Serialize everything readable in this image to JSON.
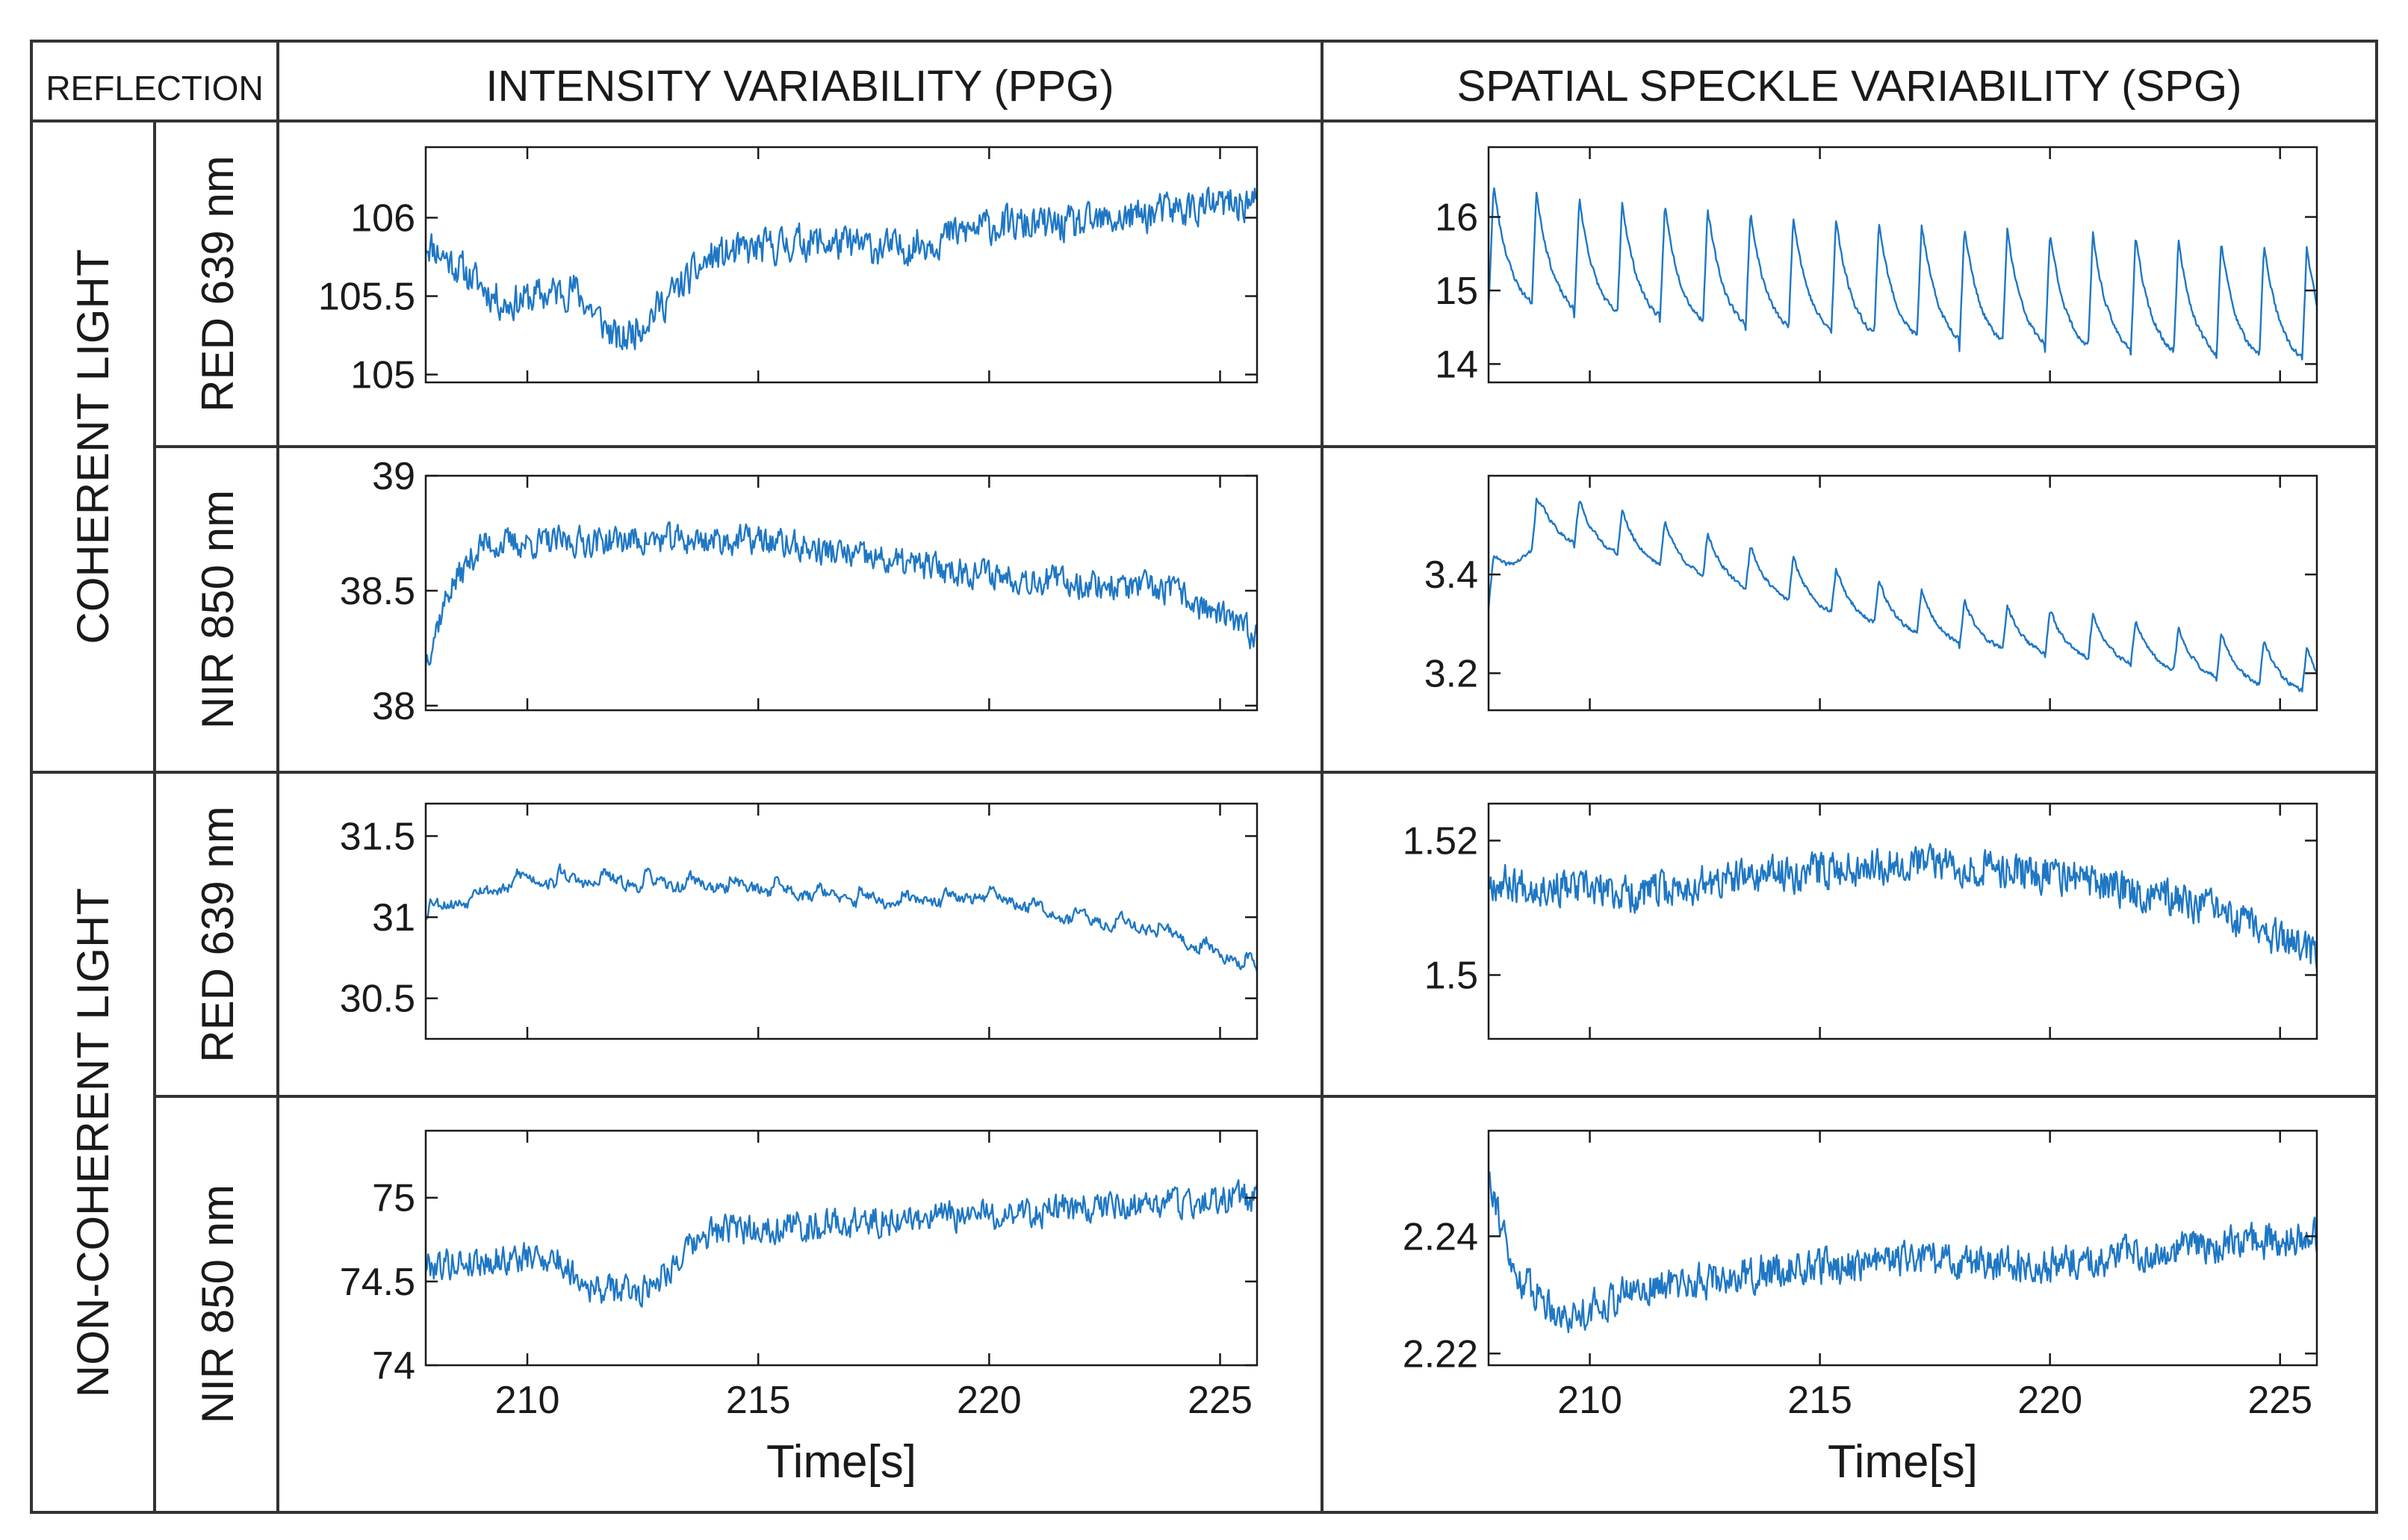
{
  "header": {
    "corner": "REFLECTION",
    "col_ppg": "INTENSITY VARIABILITY (PPG)",
    "col_spg": "SPATIAL SPECKLE VARIABILITY (SPG)"
  },
  "groups": {
    "coherent": "COHERENT LIGHT",
    "noncoherent": "NON-COHERENT LIGHT"
  },
  "rows": [
    "RED 639 nm",
    "NIR 850 nm",
    "RED 639 nm",
    "NIR 850 nm"
  ],
  "colors": {
    "line": "#1f77c4",
    "frame": "#1a1a1a",
    "border": "#333333"
  },
  "xlabel": "Time[s]",
  "chart_data": [
    {
      "id": "coh-red-ppg",
      "type": "line",
      "light": "COHERENT LIGHT",
      "source": "RED 639 nm",
      "signal": "INTENSITY VARIABILITY (PPG)",
      "xlim": [
        207.8,
        225.8
      ],
      "ylim": [
        104.95,
        106.45
      ],
      "yticks": [
        105,
        105.5,
        106
      ],
      "ytick_labels": [
        "105",
        "105.5",
        "106"
      ],
      "xticks": [
        210,
        215,
        220,
        225
      ],
      "xtick_labels": [
        "210",
        "215",
        "220",
        "225"
      ],
      "xlabel": "",
      "trend": [
        [
          207.8,
          105.85
        ],
        [
          209.5,
          105.45
        ],
        [
          211,
          105.55
        ],
        [
          212,
          105.2
        ],
        [
          214,
          105.75
        ],
        [
          216,
          105.85
        ],
        [
          218,
          105.8
        ],
        [
          220,
          105.95
        ],
        [
          222,
          105.95
        ],
        [
          224,
          106.05
        ],
        [
          225.8,
          106.1
        ]
      ],
      "noise": 0.16,
      "n": 720,
      "seed": 11
    },
    {
      "id": "coh-red-spg",
      "type": "line",
      "light": "COHERENT LIGHT",
      "source": "RED 639 nm",
      "signal": "SPATIAL SPECKLE VARIABILITY (SPG)",
      "xlim": [
        207.8,
        225.8
      ],
      "ylim": [
        13.75,
        16.95
      ],
      "yticks": [
        14,
        15,
        16
      ],
      "ytick_labels": [
        "14",
        "15",
        "16"
      ],
      "xticks": [
        210,
        215,
        220,
        225
      ],
      "xtick_labels": [
        "210",
        "215",
        "220",
        "225"
      ],
      "xlabel": "",
      "trend": [
        [
          207.8,
          15.6
        ],
        [
          210,
          15.4
        ],
        [
          215,
          15.15
        ],
        [
          220,
          14.95
        ],
        [
          225.8,
          14.75
        ]
      ],
      "pulse": {
        "period": 0.93,
        "amp": 1.7
      },
      "noise": 0.05,
      "n": 900,
      "seed": 23
    },
    {
      "id": "coh-nir-ppg",
      "type": "line",
      "light": "COHERENT LIGHT",
      "source": "NIR 850 nm",
      "signal": "INTENSITY VARIABILITY (PPG)",
      "xlim": [
        207.8,
        225.8
      ],
      "ylim": [
        37.98,
        39.0
      ],
      "yticks": [
        38,
        38.5,
        39
      ],
      "ytick_labels": [
        "38",
        "38.5",
        "39"
      ],
      "xticks": [
        210,
        215,
        220,
        225
      ],
      "xtick_labels": [
        "210",
        "215",
        "220",
        "225"
      ],
      "xlabel": "",
      "trend": [
        [
          207.8,
          38.2
        ],
        [
          208.3,
          38.5
        ],
        [
          209,
          38.7
        ],
        [
          212,
          38.72
        ],
        [
          215,
          38.72
        ],
        [
          218,
          38.62
        ],
        [
          221,
          38.55
        ],
        [
          224,
          38.5
        ],
        [
          225.8,
          38.3
        ]
      ],
      "noise": 0.09,
      "n": 720,
      "seed": 37
    },
    {
      "id": "coh-nir-spg",
      "type": "line",
      "light": "COHERENT LIGHT",
      "source": "NIR 850 nm",
      "signal": "SPATIAL SPECKLE VARIABILITY (SPG)",
      "xlim": [
        207.8,
        225.8
      ],
      "ylim": [
        3.125,
        3.6
      ],
      "yticks": [
        3.2,
        3.4
      ],
      "ytick_labels": [
        "3.2",
        "3.4"
      ],
      "xticks": [
        210,
        215,
        220,
        225
      ],
      "xtick_labels": [
        "210",
        "215",
        "220",
        "225"
      ],
      "xlabel": "",
      "trend": [
        [
          207.8,
          3.38
        ],
        [
          209,
          3.52
        ],
        [
          212,
          3.45
        ],
        [
          215,
          3.37
        ],
        [
          218,
          3.3
        ],
        [
          221,
          3.27
        ],
        [
          225.8,
          3.2
        ]
      ],
      "pulse": {
        "period": 0.93,
        "amp": 0.1
      },
      "noise": 0.006,
      "n": 900,
      "seed": 41
    },
    {
      "id": "noncoh-red-ppg",
      "type": "line",
      "light": "NON-COHERENT LIGHT",
      "source": "RED 639 nm",
      "signal": "INTENSITY VARIABILITY (PPG)",
      "xlim": [
        207.8,
        225.8
      ],
      "ylim": [
        30.25,
        31.7
      ],
      "yticks": [
        30.5,
        31,
        31.5
      ],
      "ytick_labels": [
        "30.5",
        "31",
        "31.5"
      ],
      "xticks": [
        210,
        215,
        220,
        225
      ],
      "xtick_labels": [
        "210",
        "215",
        "220",
        "225"
      ],
      "xlabel": "",
      "trend": [
        [
          207.8,
          31.05
        ],
        [
          210,
          31.25
        ],
        [
          213,
          31.22
        ],
        [
          215,
          31.2
        ],
        [
          218,
          31.1
        ],
        [
          220,
          31.15
        ],
        [
          222,
          31.0
        ],
        [
          223.5,
          30.95
        ],
        [
          225.8,
          30.7
        ]
      ],
      "pulse": {
        "period": 0.93,
        "amp": 0.1
      },
      "noise": 0.05,
      "n": 720,
      "seed": 53
    },
    {
      "id": "noncoh-red-spg",
      "type": "line",
      "light": "NON-COHERENT LIGHT",
      "source": "RED 639 nm",
      "signal": "SPATIAL SPECKLE VARIABILITY (SPG)",
      "xlim": [
        207.8,
        225.8
      ],
      "ylim": [
        1.4905,
        1.5255
      ],
      "yticks": [
        1.5,
        1.52
      ],
      "ytick_labels": [
        "1.5",
        "1.52"
      ],
      "xticks": [
        210,
        215,
        220,
        225
      ],
      "xtick_labels": [
        "210",
        "215",
        "220",
        "225"
      ],
      "xlabel": "",
      "trend": [
        [
          207.8,
          1.514
        ],
        [
          211,
          1.512
        ],
        [
          214,
          1.515
        ],
        [
          217,
          1.517
        ],
        [
          220,
          1.515
        ],
        [
          223,
          1.511
        ],
        [
          225.8,
          1.503
        ]
      ],
      "noise": 0.0038,
      "n": 800,
      "seed": 67
    },
    {
      "id": "noncoh-nir-ppg",
      "type": "line",
      "light": "NON-COHERENT LIGHT",
      "source": "NIR 850 nm",
      "signal": "INTENSITY VARIABILITY (PPG)",
      "xlim": [
        207.8,
        225.8
      ],
      "ylim": [
        74.0,
        75.4
      ],
      "yticks": [
        74,
        74.5,
        75
      ],
      "ytick_labels": [
        "74",
        "74.5",
        "75"
      ],
      "xticks": [
        210,
        215,
        220,
        225
      ],
      "xtick_labels": [
        "210",
        "215",
        "220",
        "225"
      ],
      "xlabel": "Time[s]",
      "trend": [
        [
          207.8,
          74.6
        ],
        [
          210.5,
          74.65
        ],
        [
          211.5,
          74.45
        ],
        [
          212.5,
          74.45
        ],
        [
          214,
          74.8
        ],
        [
          217,
          74.85
        ],
        [
          220,
          74.9
        ],
        [
          223,
          74.95
        ],
        [
          225.8,
          75.0
        ]
      ],
      "noise": 0.13,
      "n": 720,
      "seed": 79
    },
    {
      "id": "noncoh-nir-spg",
      "type": "line",
      "light": "NON-COHERENT LIGHT",
      "source": "NIR 850 nm",
      "signal": "SPATIAL SPECKLE VARIABILITY (SPG)",
      "xlim": [
        207.8,
        225.8
      ],
      "ylim": [
        2.218,
        2.258
      ],
      "yticks": [
        2.22,
        2.24
      ],
      "ytick_labels": [
        "2.22",
        "2.24"
      ],
      "xticks": [
        210,
        215,
        220,
        225
      ],
      "xtick_labels": [
        "210",
        "215",
        "220",
        "225"
      ],
      "xlabel": "Time[s]",
      "trend": [
        [
          207.8,
          2.252
        ],
        [
          208.3,
          2.234
        ],
        [
          209.5,
          2.226
        ],
        [
          211,
          2.231
        ],
        [
          214,
          2.234
        ],
        [
          217,
          2.236
        ],
        [
          220,
          2.235
        ],
        [
          223,
          2.238
        ],
        [
          225.8,
          2.24
        ]
      ],
      "noise": 0.0042,
      "n": 800,
      "seed": 91
    }
  ]
}
